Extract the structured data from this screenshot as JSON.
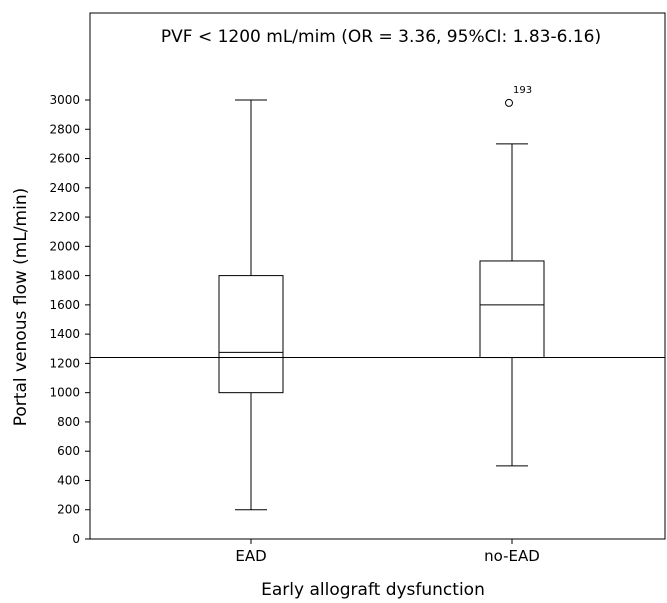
{
  "chart_data": {
    "type": "box",
    "title": "PVF < 1200 mL/mim (OR = 3.36, 95%CI: 1.83-6.16)",
    "xlabel": "Early allograft dysfunction",
    "ylabel": "Portal venous flow (mL/min)",
    "categories": [
      "EAD",
      "no-EAD"
    ],
    "ylim": [
      0,
      3000
    ],
    "yticks": [
      0,
      200,
      400,
      600,
      800,
      1000,
      1200,
      1400,
      1600,
      1800,
      2000,
      2200,
      2400,
      2600,
      2800,
      3000
    ],
    "grid": false,
    "reference_line": {
      "y": 1240
    },
    "boxes": [
      {
        "category": "EAD",
        "min": 200,
        "q1": 1000,
        "median": 1275,
        "q3": 1800,
        "max": 3000,
        "outliers": []
      },
      {
        "category": "no-EAD",
        "min": 500,
        "q1": 1240,
        "median": 1600,
        "q3": 1900,
        "max": 2700,
        "outliers": [
          {
            "value": 2980,
            "label": "193"
          }
        ]
      }
    ]
  }
}
